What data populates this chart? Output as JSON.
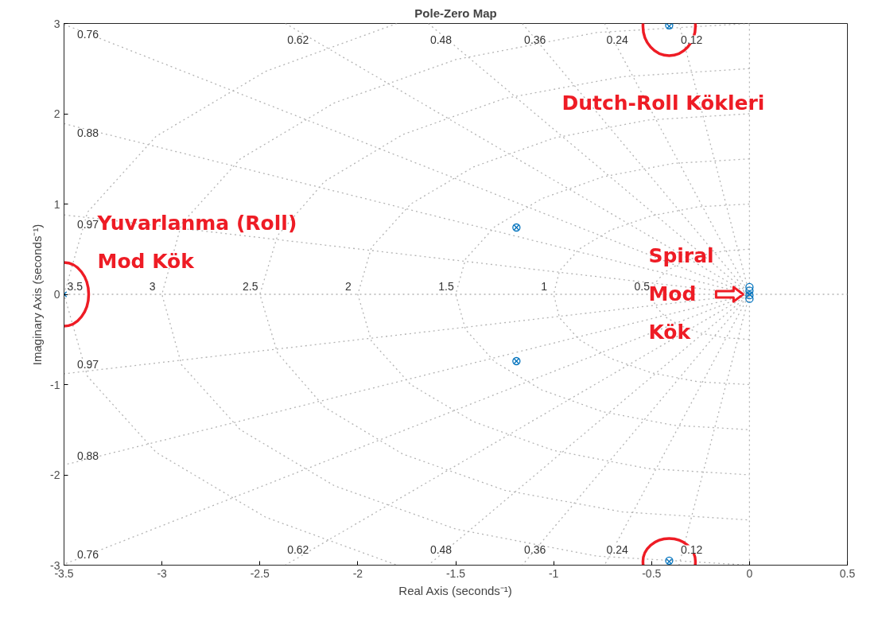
{
  "chart_data": {
    "type": "scatter",
    "title": "Pole-Zero Map",
    "xlabel": "Real Axis (seconds⁻¹)",
    "ylabel": "Imaginary Axis (seconds⁻¹)",
    "xlim": [
      -3.5,
      0.5
    ],
    "ylim": [
      -3,
      3
    ],
    "xticks": [
      -3.5,
      -3,
      -2.5,
      -2,
      -1.5,
      -1,
      -0.5,
      0,
      0.5
    ],
    "yticks": [
      -3,
      -2,
      -1,
      0,
      1,
      2,
      3
    ],
    "series": [
      {
        "type": "line",
        "name": "0.12",
        "line_style": "dotted",
        "color": "#b4b4b4",
        "x": [
          -0.36,
          0,
          -0.36
        ],
        "values": [
          3,
          0,
          -3
        ]
      },
      {
        "type": "line",
        "name": "0.24",
        "line_style": "dotted",
        "color": "#b4b4b4",
        "x": [
          -0.74,
          0,
          -0.74
        ],
        "values": [
          3,
          0,
          -3
        ]
      },
      {
        "type": "line",
        "name": "0.36",
        "line_style": "dotted",
        "color": "#b4b4b4",
        "x": [
          -1.16,
          0,
          -1.16
        ],
        "values": [
          3,
          0,
          -3
        ]
      },
      {
        "type": "line",
        "name": "0.48",
        "line_style": "dotted",
        "color": "#b4b4b4",
        "x": [
          -1.64,
          0,
          -1.64
        ],
        "values": [
          3,
          0,
          -3
        ]
      },
      {
        "type": "line",
        "name": "0.62",
        "line_style": "dotted",
        "color": "#b4b4b4",
        "x": [
          -2.37,
          0,
          -2.37
        ],
        "values": [
          3,
          0,
          -3
        ]
      },
      {
        "type": "line",
        "name": "0.76",
        "line_style": "dotted",
        "color": "#b4b4b4",
        "x": [
          -3.5,
          0,
          -3.5
        ],
        "values": [
          2.99,
          0,
          -2.99
        ]
      },
      {
        "type": "line",
        "name": "0.88",
        "line_style": "dotted",
        "color": "#b4b4b4",
        "x": [
          -3.5,
          0,
          -3.5
        ],
        "values": [
          1.89,
          0,
          -1.89
        ]
      },
      {
        "type": "line",
        "name": "0.97",
        "line_style": "dotted",
        "color": "#b4b4b4",
        "x": [
          -3.5,
          0,
          -3.5
        ],
        "values": [
          0.88,
          0,
          -0.88
        ]
      },
      {
        "type": "line",
        "name": "0.5",
        "line_style": "dotted",
        "color": "#b4b4b4",
        "x": [
          0,
          -0.13,
          -0.25,
          -0.35,
          -0.43,
          -0.48,
          -0.5,
          -0.48,
          -0.43,
          -0.35,
          -0.25,
          -0.13,
          0
        ],
        "values": [
          0.5,
          0.48,
          0.43,
          0.35,
          0.25,
          0.13,
          0,
          -0.13,
          -0.25,
          -0.35,
          -0.43,
          -0.48,
          -0.5
        ]
      },
      {
        "type": "line",
        "name": "1",
        "line_style": "dotted",
        "color": "#b4b4b4",
        "x": [
          0,
          -0.26,
          -0.5,
          -0.71,
          -0.87,
          -0.97,
          -1,
          -0.97,
          -0.87,
          -0.71,
          -0.5,
          -0.26,
          0
        ],
        "values": [
          1,
          0.97,
          0.87,
          0.71,
          0.5,
          0.26,
          0,
          -0.26,
          -0.5,
          -0.71,
          -0.87,
          -0.97,
          -1
        ]
      },
      {
        "type": "line",
        "name": "1.5",
        "line_style": "dotted",
        "color": "#b4b4b4",
        "x": [
          0,
          -0.39,
          -0.75,
          -1.06,
          -1.3,
          -1.45,
          -1.5,
          -1.45,
          -1.3,
          -1.06,
          -0.75,
          -0.39,
          0
        ],
        "values": [
          1.5,
          1.45,
          1.3,
          1.06,
          0.75,
          0.39,
          0,
          -0.39,
          -0.75,
          -1.06,
          -1.3,
          -1.45,
          -1.5
        ]
      },
      {
        "type": "line",
        "name": "2",
        "line_style": "dotted",
        "color": "#b4b4b4",
        "x": [
          0,
          -0.52,
          -1,
          -1.41,
          -1.73,
          -1.93,
          -2,
          -1.93,
          -1.73,
          -1.41,
          -1,
          -0.52,
          0
        ],
        "values": [
          2,
          1.93,
          1.73,
          1.41,
          1,
          0.52,
          0,
          -0.52,
          -1,
          -1.41,
          -1.73,
          -1.93,
          -2
        ]
      },
      {
        "type": "line",
        "name": "2.5",
        "line_style": "dotted",
        "color": "#b4b4b4",
        "x": [
          0,
          -0.65,
          -1.25,
          -1.77,
          -2.17,
          -2.41,
          -2.5,
          -2.41,
          -2.17,
          -1.77,
          -1.25,
          -0.65,
          0
        ],
        "values": [
          2.5,
          2.41,
          2.17,
          1.77,
          1.25,
          0.65,
          0,
          -0.65,
          -1.25,
          -1.77,
          -2.17,
          -2.41,
          -2.5
        ]
      },
      {
        "type": "line",
        "name": "3",
        "line_style": "dotted",
        "color": "#b4b4b4",
        "x": [
          0,
          -0.78,
          -1.5,
          -2.12,
          -2.6,
          -2.9,
          -3,
          -2.9,
          -2.6,
          -2.12,
          -1.5,
          -0.78,
          0
        ],
        "values": [
          3,
          2.9,
          2.6,
          2.12,
          1.5,
          0.78,
          0,
          -0.78,
          -1.5,
          -2.12,
          -2.6,
          -2.9,
          -3
        ]
      },
      {
        "type": "line",
        "name": "3.5",
        "line_style": "dotted",
        "color": "#b4b4b4",
        "x": [
          -1.8,
          -2.47,
          -3.03,
          -3.38,
          -3.5,
          -3.38,
          -3.03,
          -2.47,
          -1.8
        ],
        "values": [
          3,
          2.47,
          1.75,
          0.91,
          0,
          -0.91,
          -1.75,
          -2.47,
          -3
        ]
      },
      {
        "type": "line",
        "line_style": "dotted",
        "color": "#b4b4b4",
        "x": [
          -3.5,
          0.5
        ],
        "values": [
          0,
          0
        ]
      },
      {
        "type": "line",
        "line_style": "dotted",
        "color": "#b4b4b4",
        "x": [
          0,
          0
        ],
        "values": [
          -3,
          3
        ]
      },
      {
        "marker": "circle",
        "color": "#0072bd",
        "x": [
          -1.19,
          -1.19,
          -0.41,
          -0.41,
          0,
          0,
          0,
          0
        ],
        "values": [
          0.74,
          -0.74,
          2.98,
          -2.95,
          0.08,
          0.04,
          -0.01,
          -0.05
        ]
      },
      {
        "marker": "cross",
        "color": "#0072bd",
        "x": [
          -3.5,
          -1.19,
          -1.19,
          -0.41,
          -0.41,
          0
        ],
        "values": [
          0,
          0.74,
          -0.74,
          2.97,
          -2.96,
          0
        ]
      }
    ],
    "annotations": [
      {
        "text": "Yuvarlanma (Roll)\nMod Kök",
        "x": -3.5,
        "y": 0
      },
      "Dutch-Roll Kökleri",
      {
        "text": "Spiral\nMod\nKök",
        "x": 0,
        "y": 0
      }
    ]
  }
}
